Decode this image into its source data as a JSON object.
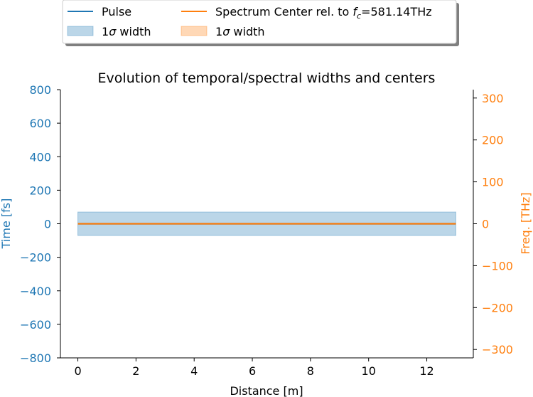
{
  "chart_data": {
    "type": "line",
    "title": "Evolution of temporal/spectral widths and centers",
    "xlabel": "Distance [m]",
    "ylabel_left": "Time [fs]",
    "ylabel_right": "Freq. [THz]",
    "xlim": [
      -0.6,
      13.6
    ],
    "ylim_left": [
      -800,
      800
    ],
    "ylim_right": [
      -320,
      320
    ],
    "xticks": [
      0,
      2,
      4,
      6,
      8,
      10,
      12
    ],
    "yticks_left": [
      -800,
      -600,
      -400,
      -200,
      0,
      200,
      400,
      600,
      800
    ],
    "yticks_right": [
      -300,
      -200,
      -100,
      0,
      100,
      200,
      300
    ],
    "grid": false,
    "legend_position": "top, outside plot area",
    "legend": {
      "pulse_label": "Pulse",
      "pulse_width_prefix": "1",
      "pulse_width_suffix": " width",
      "spectrum_label_prefix": "Spectrum Center rel. to ",
      "spectrum_label_suffix": "=581.14THz",
      "spectrum_width_prefix": "1",
      "spectrum_width_suffix": " width"
    },
    "series": [
      {
        "name": "Pulse",
        "axis": "left",
        "color": "#1f77b4",
        "x": [
          0,
          13
        ],
        "center": [
          0,
          0
        ],
        "width_lower": [
          -70,
          -70
        ],
        "width_upper": [
          70,
          70
        ]
      },
      {
        "name": "Spectrum Center rel. to fc=581.14THz",
        "axis": "right",
        "color": "#ff7f0e",
        "x": [
          0,
          13
        ],
        "center": [
          0,
          0
        ],
        "width_lower": [
          0,
          0
        ],
        "width_upper": [
          0,
          0
        ]
      }
    ]
  }
}
